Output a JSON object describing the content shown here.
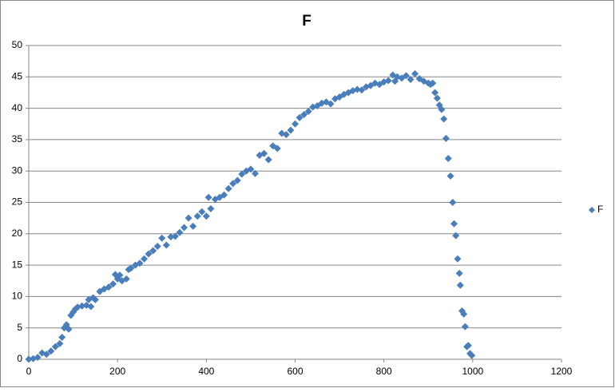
{
  "chart_data": {
    "type": "scatter",
    "title": "F",
    "series": [
      {
        "name": "F",
        "color": "#4a7ebb",
        "x": [
          0,
          10,
          20,
          30,
          40,
          50,
          60,
          70,
          75,
          80,
          85,
          90,
          95,
          100,
          105,
          110,
          120,
          130,
          135,
          140,
          145,
          150,
          160,
          170,
          180,
          190,
          195,
          200,
          205,
          210,
          220,
          225,
          230,
          240,
          250,
          260,
          270,
          280,
          290,
          300,
          310,
          320,
          330,
          340,
          350,
          360,
          370,
          380,
          390,
          400,
          405,
          410,
          420,
          430,
          440,
          450,
          460,
          470,
          480,
          490,
          500,
          510,
          520,
          530,
          540,
          550,
          560,
          570,
          580,
          590,
          600,
          610,
          620,
          630,
          640,
          650,
          660,
          670,
          680,
          690,
          700,
          710,
          720,
          730,
          740,
          750,
          760,
          770,
          780,
          790,
          800,
          810,
          820,
          825,
          830,
          840,
          850,
          860,
          870,
          880,
          890,
          900,
          905,
          910,
          915,
          920,
          925,
          930,
          935,
          940,
          945,
          950,
          955,
          958,
          962,
          966,
          970,
          972,
          976,
          980,
          983,
          987,
          990,
          994,
          998
        ],
        "values": [
          0,
          0.1,
          0.3,
          1,
          0.8,
          1.3,
          2,
          2.5,
          3.5,
          5,
          5.5,
          4.8,
          7,
          7.5,
          8,
          8.3,
          8.5,
          8.6,
          9.5,
          8.4,
          9.8,
          9.5,
          10.8,
          11.2,
          11.5,
          12,
          13.5,
          12.8,
          13.4,
          12.5,
          12.8,
          14.3,
          14.5,
          15,
          15.3,
          16,
          16.8,
          17.3,
          18,
          19.3,
          18.2,
          19.5,
          19.6,
          20.2,
          21,
          22.5,
          21.2,
          22.8,
          23.5,
          22.8,
          25.8,
          24,
          25.5,
          25.8,
          26.2,
          27.2,
          28,
          28.5,
          29.5,
          30,
          30.3,
          29.6,
          32.5,
          32.8,
          31.8,
          34,
          33.6,
          36,
          35.8,
          36.5,
          37.5,
          38.5,
          39,
          39.5,
          40.2,
          40.4,
          40.8,
          41,
          40.7,
          41.5,
          41.8,
          42.2,
          42.5,
          42.8,
          43,
          42.9,
          43.4,
          43.6,
          44,
          43.8,
          44.2,
          44.4,
          45.3,
          44.3,
          45,
          44.8,
          45.2,
          44.6,
          45.5,
          44.7,
          44.3,
          44,
          43.8,
          44,
          42.5,
          41.6,
          40.5,
          39.8,
          38.3,
          35.2,
          32,
          29.2,
          25,
          21.6,
          19.7,
          16,
          13.7,
          11.8,
          7.7,
          7.2,
          5.2,
          2,
          2.2,
          0.9,
          0.6
        ]
      }
    ],
    "xlim": [
      0,
      1200
    ],
    "xticks": [
      0,
      200,
      400,
      600,
      800,
      1000,
      1200
    ],
    "ylim": [
      0,
      50
    ],
    "yticks": [
      0,
      5,
      10,
      15,
      20,
      25,
      30,
      35,
      40,
      45,
      50
    ],
    "grid": true,
    "legend": "right"
  }
}
